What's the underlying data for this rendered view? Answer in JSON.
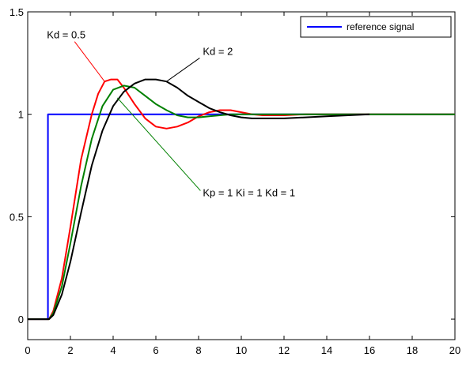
{
  "chart_data": {
    "type": "line",
    "xlim": [
      0,
      20
    ],
    "ylim": [
      -0.1,
      1.5
    ],
    "xticks": [
      "0",
      "2",
      "4",
      "6",
      "8",
      "10",
      "12",
      "14",
      "16",
      "18",
      "20"
    ],
    "yticks": [
      "0",
      "0.5",
      "1",
      "1.5"
    ],
    "grid": false,
    "legend": {
      "placement": "top-right",
      "entries": [
        "reference signal"
      ]
    },
    "series": [
      {
        "name": "reference signal",
        "color": "#0000ff",
        "x": [
          0,
          0.95,
          0.95,
          1,
          20
        ],
        "y": [
          0,
          0,
          1,
          1,
          1
        ]
      },
      {
        "color": "#ff0000",
        "x": [
          0,
          1,
          1.2,
          1.6,
          2,
          2.5,
          3,
          3.3,
          3.6,
          3.9,
          4.2,
          4.5,
          5,
          5.5,
          6,
          6.5,
          7,
          7.5,
          8,
          8.5,
          9,
          9.5,
          10,
          10.5,
          11,
          12,
          13,
          14,
          16,
          18,
          20
        ],
        "y": [
          0,
          0,
          0.04,
          0.2,
          0.45,
          0.78,
          1.0,
          1.1,
          1.16,
          1.17,
          1.17,
          1.13,
          1.05,
          0.98,
          0.94,
          0.93,
          0.94,
          0.96,
          0.99,
          1.01,
          1.02,
          1.02,
          1.01,
          1.0,
          0.995,
          0.995,
          1.0,
          1.0,
          1.0,
          1.0,
          1.0
        ]
      },
      {
        "color": "#008000",
        "x": [
          0,
          1,
          1.2,
          1.6,
          2,
          2.5,
          3,
          3.5,
          4,
          4.5,
          5,
          5.5,
          6,
          6.5,
          7,
          7.5,
          8,
          8.5,
          9,
          9.5,
          10,
          11,
          12,
          13,
          14,
          16,
          18,
          20
        ],
        "y": [
          0,
          0,
          0.03,
          0.16,
          0.37,
          0.65,
          0.88,
          1.04,
          1.12,
          1.14,
          1.13,
          1.09,
          1.05,
          1.02,
          0.995,
          0.985,
          0.985,
          0.99,
          0.995,
          1.0,
          1.0,
          1.0,
          1.0,
          1.0,
          1.0,
          1.0,
          1.0,
          1.0
        ]
      },
      {
        "color": "#000000",
        "x": [
          0,
          1,
          1.2,
          1.6,
          2,
          2.5,
          3,
          3.5,
          4,
          4.5,
          5,
          5.5,
          6,
          6.5,
          7,
          7.5,
          8,
          8.5,
          9,
          9.5,
          10,
          10.5,
          11,
          12,
          13,
          14,
          15,
          16
        ],
        "y": [
          0,
          0,
          0.02,
          0.12,
          0.28,
          0.52,
          0.75,
          0.92,
          1.04,
          1.11,
          1.15,
          1.17,
          1.17,
          1.16,
          1.13,
          1.09,
          1.06,
          1.03,
          1.01,
          0.995,
          0.985,
          0.98,
          0.98,
          0.98,
          0.985,
          0.99,
          0.995,
          1.0
        ]
      }
    ],
    "annotations": [
      {
        "text": "Kd = 0.5",
        "x_text": 0.9,
        "y_text": 1.37,
        "arrow_to_x": 3.6,
        "arrow_to_y": 1.16,
        "color": "#ff0000"
      },
      {
        "text": "Kd = 2",
        "x_text": 8.2,
        "y_text": 1.29,
        "arrow_to_x": 6.5,
        "arrow_to_y": 1.16,
        "color": "#000000"
      },
      {
        "text": "Kp = 1  Ki = 1  Kd = 1",
        "x_text": 8.2,
        "y_text": 0.6,
        "arrow_to_x": 4.2,
        "arrow_to_y": 1.08,
        "color": "#008000"
      }
    ]
  }
}
